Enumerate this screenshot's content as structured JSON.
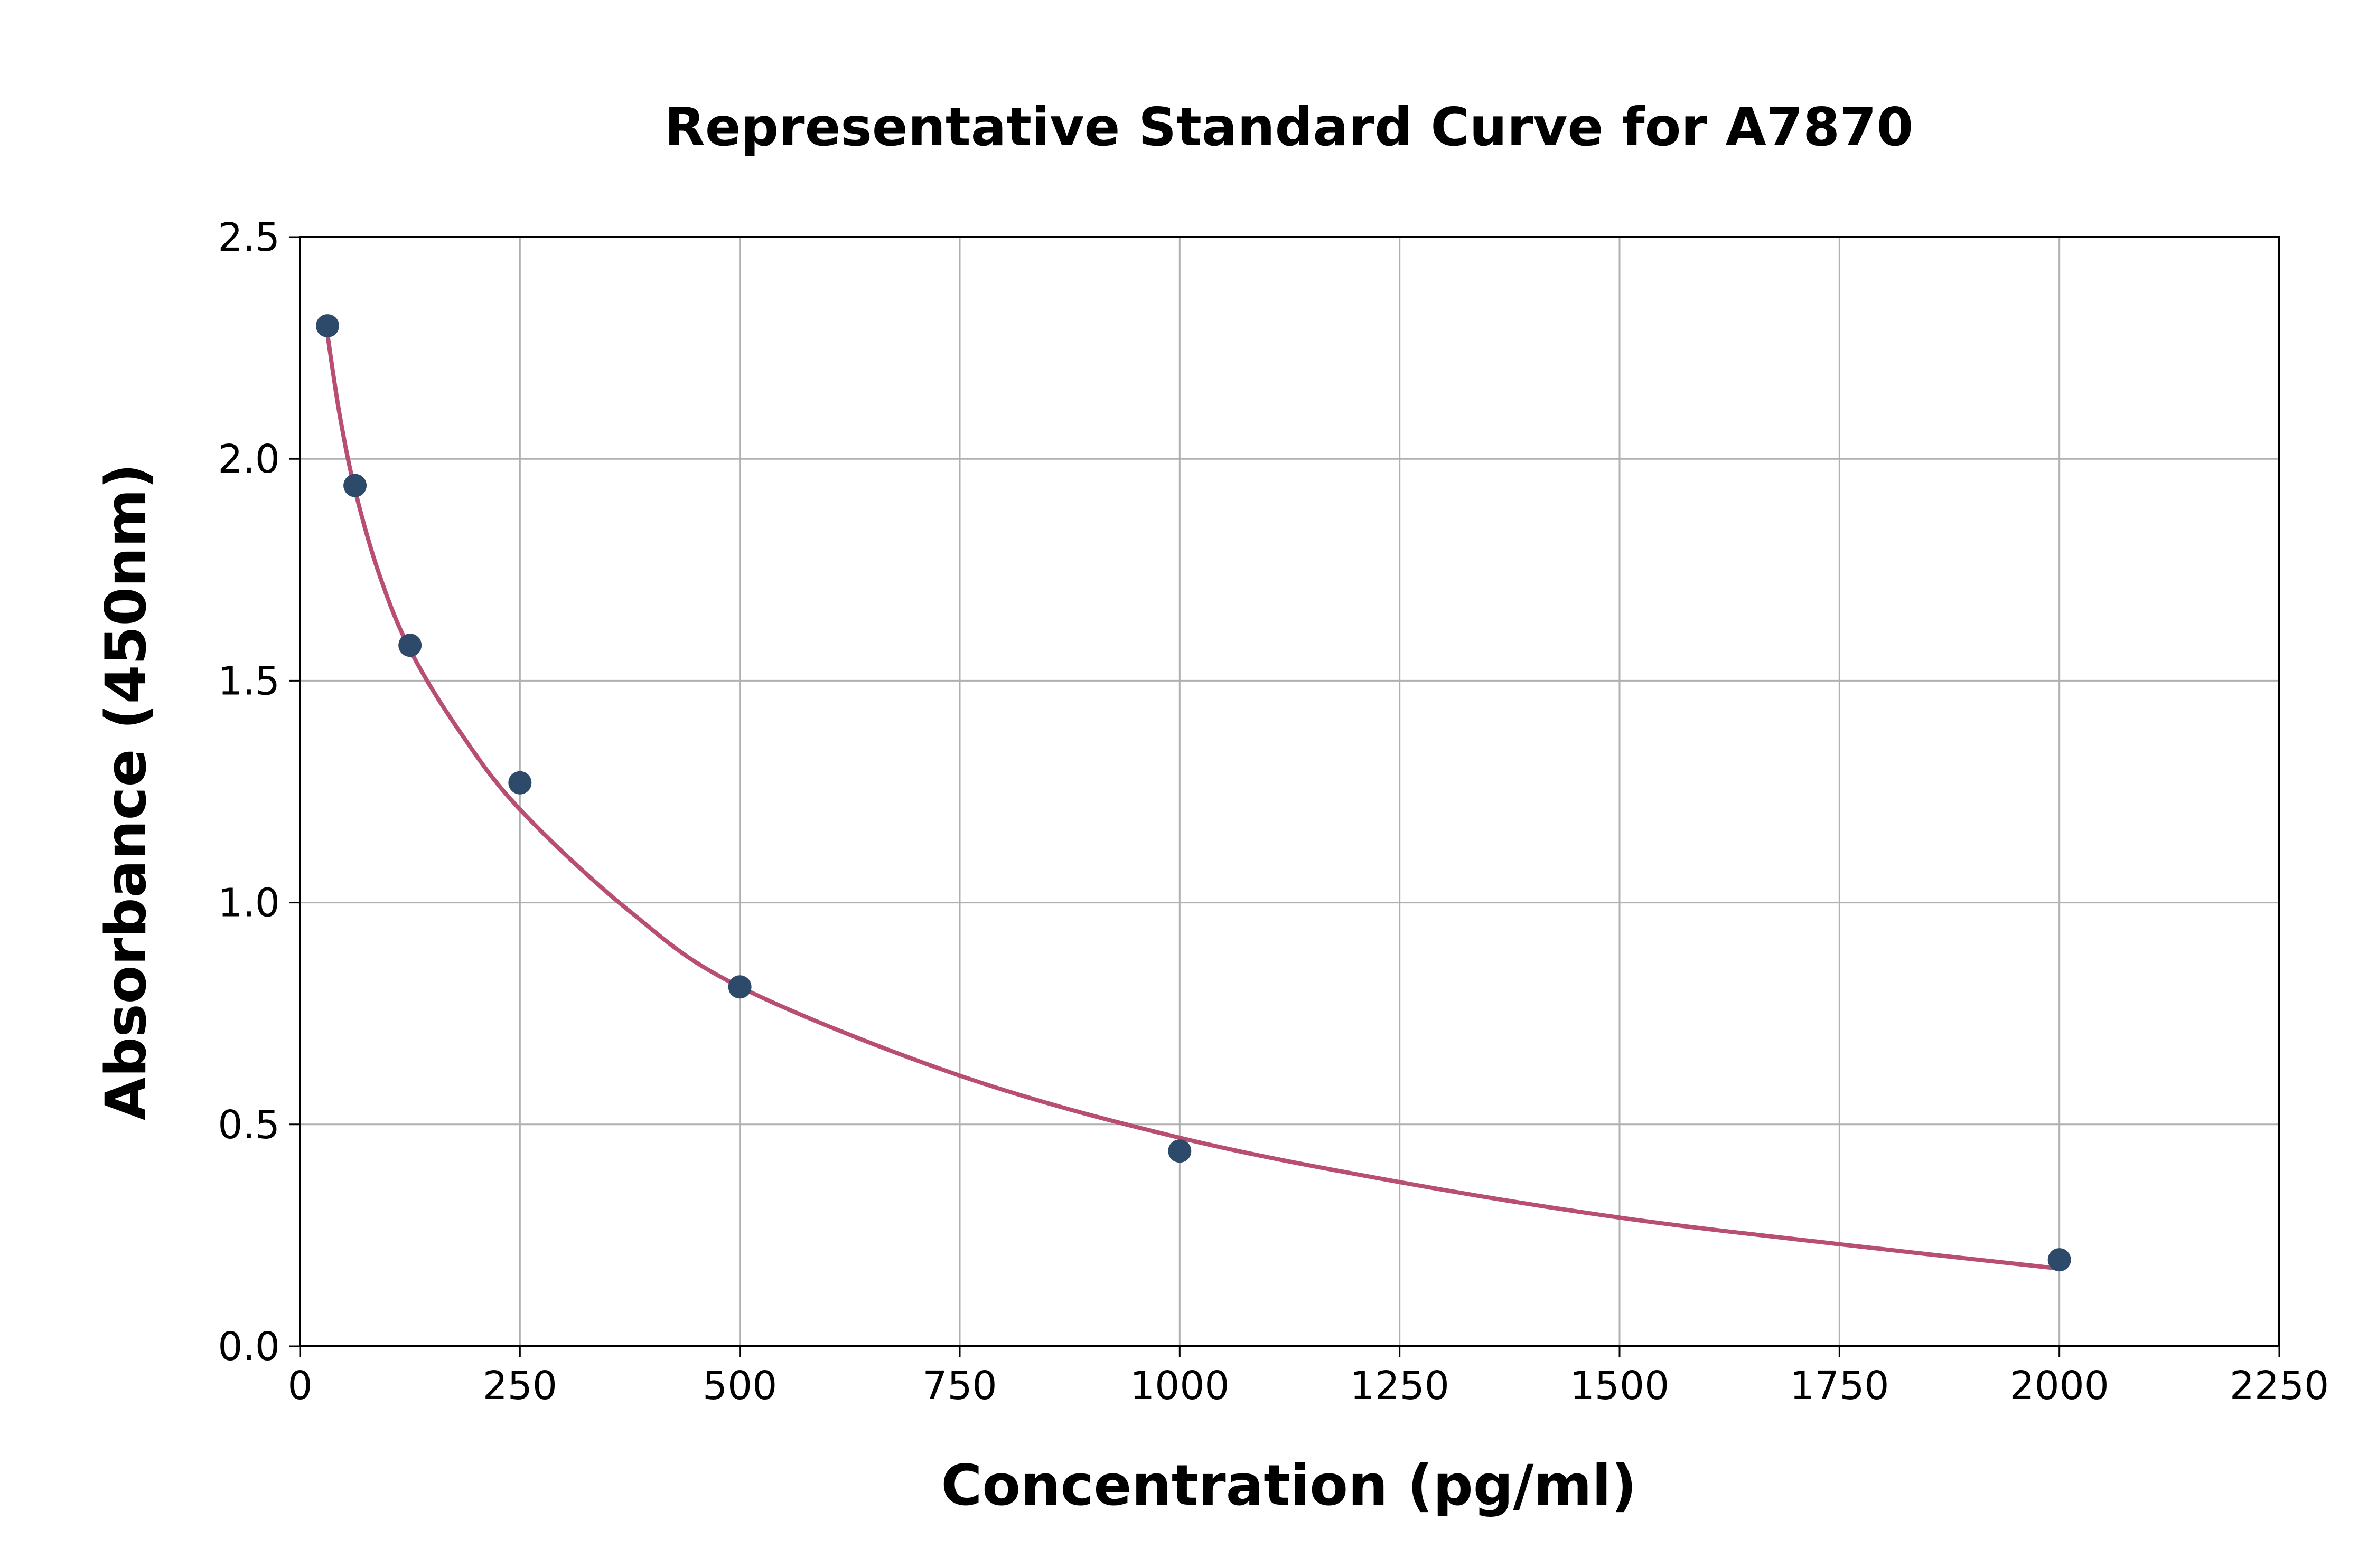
{
  "chart_data": {
    "type": "scatter",
    "title": "Representative Standard Curve for A7870",
    "xlabel": "Concentration (pg/ml)",
    "ylabel": "Absorbance (450nm)",
    "xlim": [
      0,
      2250
    ],
    "ylim": [
      0,
      2.5
    ],
    "xticks": [
      0,
      250,
      500,
      750,
      1000,
      1250,
      1500,
      1750,
      2000,
      2250
    ],
    "yticks": [
      "0.0",
      "0.5",
      "1.0",
      "1.5",
      "2.0",
      "2.5"
    ],
    "grid": true,
    "points": {
      "x": [
        31.25,
        62.5,
        125,
        250,
        500,
        1000,
        2000
      ],
      "y": [
        2.3,
        1.94,
        1.58,
        1.27,
        0.81,
        0.44,
        0.195
      ],
      "color": "#2e4a6b"
    },
    "fit_curve": {
      "x": [
        31.25,
        45,
        62.5,
        90,
        125,
        180,
        250,
        375,
        500,
        750,
        1000,
        1250,
        1500,
        1750,
        2000
      ],
      "y": [
        2.28,
        2.1,
        1.93,
        1.74,
        1.57,
        1.39,
        1.21,
        0.98,
        0.81,
        0.61,
        0.47,
        0.37,
        0.29,
        0.23,
        0.175
      ],
      "color": "#b84e72"
    }
  }
}
